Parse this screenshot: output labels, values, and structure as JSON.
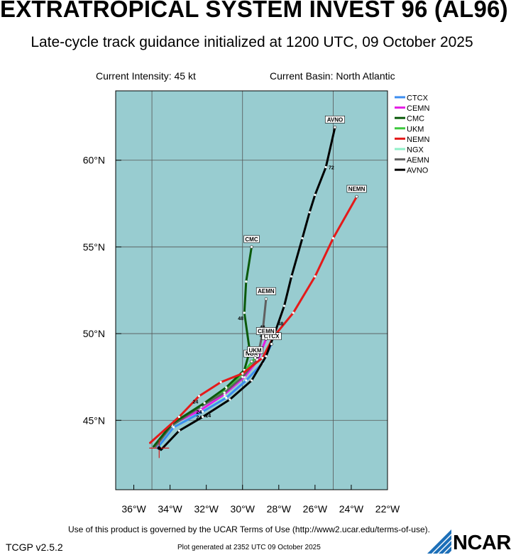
{
  "header": {
    "title": "EXTRATROPICAL SYSTEM INVEST 96 (AL96)",
    "subtitle": "Late-cycle track guidance initialized at 1200 UTC, 09 October 2025",
    "intensity": "Current Intensity: 45 kt",
    "basin": "Current Basin: North Atlantic"
  },
  "footer": {
    "terms": "Use of this product is governed by the UCAR Terms of Use (http://www2.ucar.edu/terms-of-use).",
    "version": "TCGP v2.5.2",
    "generated": "Plot generated at 2352 UTC   09 October 2025",
    "logo_text": "NCAR"
  },
  "map": {
    "lon_range": [
      -37,
      -22
    ],
    "lat_range": [
      41,
      64
    ],
    "lon_ticks": [
      {
        "value": -36,
        "label": "36°W"
      },
      {
        "value": -34,
        "label": "34°W"
      },
      {
        "value": -32,
        "label": "32°W"
      },
      {
        "value": -30,
        "label": "30°W"
      },
      {
        "value": -28,
        "label": "28°W"
      },
      {
        "value": -26,
        "label": "26°W"
      },
      {
        "value": -24,
        "label": "24°W"
      },
      {
        "value": -22,
        "label": "22°W"
      }
    ],
    "lat_ticks": [
      {
        "value": 45,
        "label": "45°N"
      },
      {
        "value": 50,
        "label": "50°N"
      },
      {
        "value": 55,
        "label": "55°N"
      },
      {
        "value": 60,
        "label": "60°N"
      }
    ],
    "grid_lons": [
      -35,
      -30,
      -25
    ],
    "grid_lats": [
      45,
      50,
      55,
      60
    ],
    "ocean_color": "#98ccd0",
    "grid_color": "#555555",
    "current_position": {
      "lon": -34.6,
      "lat": 43.4
    }
  },
  "legend": [
    {
      "name": "CTCX",
      "color": "#3c8ef0"
    },
    {
      "name": "CEMN",
      "color": "#e41de4"
    },
    {
      "name": "CMC",
      "color": "#0b5a0b"
    },
    {
      "name": "UKM",
      "color": "#3cc83c"
    },
    {
      "name": "NEMN",
      "color": "#e41a1a"
    },
    {
      "name": "NGX",
      "color": "#8ff0c8"
    },
    {
      "name": "AEMN",
      "color": "#606060"
    },
    {
      "name": "AVNO",
      "color": "#000000"
    }
  ],
  "tracks": [
    {
      "name": "NGX",
      "color": "#8ff0c8",
      "label": "NGX",
      "points": [
        [
          -34.6,
          43.4
        ],
        [
          -34.0,
          44.6
        ],
        [
          -32.3,
          45.6
        ],
        [
          -31.0,
          46.4
        ],
        [
          -30.1,
          47.4
        ],
        [
          -29.5,
          48.4
        ]
      ]
    },
    {
      "name": "UKM",
      "color": "#3cc83c",
      "label": "UKM",
      "points": [
        [
          -34.8,
          43.5
        ],
        [
          -33.9,
          44.8
        ],
        [
          -32.2,
          45.9
        ],
        [
          -30.9,
          46.8
        ],
        [
          -30.0,
          47.7
        ],
        [
          -29.3,
          48.6
        ]
      ]
    },
    {
      "name": "CTCX",
      "color": "#3c8ef0",
      "label": "CTCX",
      "points": [
        [
          -34.7,
          43.4
        ],
        [
          -33.8,
          44.6
        ],
        [
          -32.2,
          45.5
        ],
        [
          -30.9,
          46.3
        ],
        [
          -29.8,
          47.3
        ],
        [
          -28.9,
          48.3
        ],
        [
          -28.4,
          49.4
        ]
      ]
    },
    {
      "name": "CEMN",
      "color": "#e41de4",
      "label": "CEMN",
      "points": [
        [
          -34.8,
          43.5
        ],
        [
          -34.0,
          44.7
        ],
        [
          -32.3,
          45.6
        ],
        [
          -31.0,
          46.5
        ],
        [
          -29.9,
          47.5
        ],
        [
          -29.2,
          48.4
        ],
        [
          -28.7,
          49.7
        ]
      ]
    },
    {
      "name": "AEMN",
      "color": "#606060",
      "label": "AEMN",
      "points": [
        [
          -34.8,
          43.5
        ],
        [
          -33.9,
          44.7
        ],
        [
          -32.3,
          45.8
        ],
        [
          -31.0,
          46.6
        ],
        [
          -30.0,
          47.5
        ],
        [
          -29.2,
          48.5
        ],
        [
          -28.9,
          50.0
        ],
        [
          -28.7,
          52.0
        ]
      ]
    },
    {
      "name": "CMC",
      "color": "#0b5a0b",
      "label": "CMC",
      "points": [
        [
          -34.9,
          43.5
        ],
        [
          -33.9,
          44.8
        ],
        [
          -32.1,
          46.0
        ],
        [
          -30.9,
          46.9
        ],
        [
          -29.9,
          47.9
        ],
        [
          -29.6,
          49.0
        ],
        [
          -29.9,
          51.2
        ],
        [
          -29.8,
          53.0
        ],
        [
          -29.5,
          55.0
        ]
      ]
    },
    {
      "name": "NEMN",
      "color": "#e41a1a",
      "label": "NEMN",
      "points": [
        [
          -35.1,
          43.7
        ],
        [
          -33.5,
          45.2
        ],
        [
          -32.4,
          46.4
        ],
        [
          -31.2,
          47.2
        ],
        [
          -30.0,
          47.7
        ],
        [
          -28.9,
          48.6
        ],
        [
          -28.3,
          49.8
        ],
        [
          -27.2,
          51.2
        ],
        [
          -26.0,
          53.3
        ],
        [
          -25.0,
          55.5
        ],
        [
          -23.7,
          57.9
        ]
      ]
    },
    {
      "name": "AVNO",
      "color": "#000000",
      "label": "AVNO",
      "points": [
        [
          -34.5,
          43.3
        ],
        [
          -33.5,
          44.4
        ],
        [
          -32.2,
          45.2
        ],
        [
          -30.7,
          46.2
        ],
        [
          -29.5,
          47.3
        ],
        [
          -28.7,
          48.7
        ],
        [
          -28.2,
          50.1
        ],
        [
          -27.7,
          51.6
        ],
        [
          -27.3,
          53.3
        ],
        [
          -26.7,
          55.5
        ],
        [
          -26.3,
          57.0
        ],
        [
          -26.0,
          58.0
        ],
        [
          -25.4,
          59.6
        ],
        [
          -24.9,
          61.9
        ]
      ]
    }
  ],
  "hour_labels": [
    {
      "text": "24",
      "lon": -32.6,
      "lat": 46.1
    },
    {
      "text": "24",
      "lon": -32.4,
      "lat": 45.5
    },
    {
      "text": "24",
      "lon": -31.9,
      "lat": 45.3
    },
    {
      "text": "24",
      "lon": -32.4,
      "lat": 45.2
    },
    {
      "text": "48",
      "lon": -30.1,
      "lat": 50.9
    },
    {
      "text": "48",
      "lon": -28.9,
      "lat": 50.4
    },
    {
      "text": "48",
      "lon": -28.9,
      "lat": 49.9
    },
    {
      "text": "48",
      "lon": -29.1,
      "lat": 49.0
    },
    {
      "text": "48",
      "lon": -27.9,
      "lat": 50.6
    },
    {
      "text": "48",
      "lon": -28.1,
      "lat": 50.0
    },
    {
      "text": "72",
      "lon": -25.1,
      "lat": 59.6
    }
  ]
}
